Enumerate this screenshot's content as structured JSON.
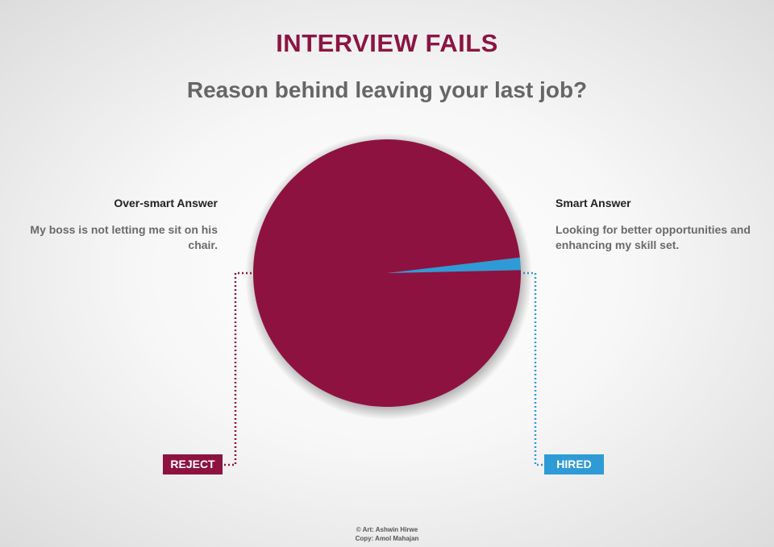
{
  "header": {
    "title": "INTERVIEW FAILS",
    "subtitle": "Reason behind leaving your last job?"
  },
  "left_answer": {
    "heading": "Over-smart Answer",
    "text": "My boss is not letting me sit on his chair.",
    "badge": "REJECT"
  },
  "right_answer": {
    "heading": "Smart Answer",
    "text": "Looking for better opportunities and enhancing my skill set.",
    "badge": "HIRED"
  },
  "credits": {
    "art": "© Art: Ashwin Hirwe",
    "copy": "Copy: Amol Mahajan"
  },
  "colors": {
    "title": "#8b1540",
    "maroon": "#8e1240",
    "blue": "#2f9bd6",
    "subtitle": "#666666"
  },
  "chart_data": {
    "type": "pie",
    "slices": [
      {
        "label": "Over-smart Answer",
        "value": 98.5,
        "color": "#8e1240"
      },
      {
        "label": "Smart Answer",
        "value": 1.5,
        "color": "#2f9bd6"
      }
    ]
  }
}
